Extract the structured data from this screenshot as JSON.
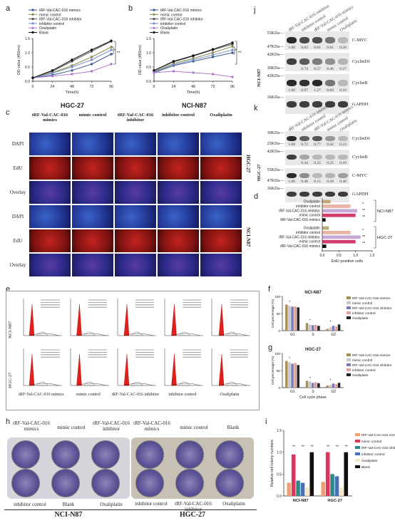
{
  "panels": {
    "a": {
      "label": "a",
      "ylabel": "OD value (450nm)",
      "xlabel": "Time(h)",
      "cell_line": "HGC-27"
    },
    "b": {
      "label": "b",
      "ylabel": "OD value (450nm)",
      "xlabel": "Time(h)",
      "cell_line": "NCI-N87"
    },
    "c": {
      "label": "c"
    },
    "d": {
      "label": "d",
      "xlabel": "EdU positive cells"
    },
    "e": {
      "label": "e"
    },
    "f": {
      "label": "f",
      "title": "NCI-N87"
    },
    "g": {
      "label": "g",
      "title": "HGC-27",
      "xlabel": "Cell cycle phase"
    },
    "h": {
      "label": "h"
    },
    "i": {
      "label": "i"
    },
    "j": {
      "label": "j",
      "cell_line": "NCI-N87"
    },
    "k": {
      "label": "k",
      "cell_line": "HGC-27"
    }
  },
  "legend_groups": [
    "tRF-Val-CAC-016 mimics",
    "mimic control",
    "tRF-Val-CAC-016 inhibitor",
    "inhibitor control",
    "Oxaliplatin",
    "Blank"
  ],
  "microscopy": {
    "columns": [
      "tRF-Val-CAC-016 mimics",
      "mimic control",
      "tRF-Val-CAC-016 inhibitor",
      "inhibitor control",
      "Oxaliplatin"
    ],
    "rows": [
      "DAPI",
      "EdU",
      "Overlay",
      "DAPI",
      "EdU",
      "Overlay"
    ],
    "side_labels": [
      "HGC-27",
      "NCI-N87"
    ]
  },
  "flow": {
    "columns": [
      "tRF-Val-CAC-016 mimics",
      "mimic control",
      "tRF-Val-CAC-016 inhibitor",
      "inhibitor control",
      "Oxaliplatin"
    ],
    "rows": [
      "NCI-N87",
      "HGC-27"
    ]
  },
  "blot_j": {
    "columns": [
      "tRF-Val-CAC-016 inhibitor",
      "inhibitor control",
      "tRF-Val-CAC-016 mimics",
      "mimic control",
      "Oxaliplatin"
    ],
    "rows": [
      {
        "kda": "55KDa",
        "kda2": "47KDa",
        "protein": "C-MYC",
        "values": [
          "1.00",
          "0.83",
          "0.81",
          "0.61",
          "0.20"
        ]
      },
      {
        "kda": "42KDa",
        "kda2": "30KDa",
        "protein": "CyclinD1",
        "values": [
          "",
          "0.74",
          "0.57",
          "0.46",
          "0.27"
        ]
      },
      {
        "kda": "42KDa",
        "kda2": "",
        "protein": "CyclinB",
        "values": [
          "1.00",
          "0.97",
          "1.27",
          "0.60",
          "0.10"
        ]
      },
      {
        "kda": "36KDa",
        "kda2": "",
        "protein": "GAPDH",
        "values": []
      }
    ]
  },
  "blot_k": {
    "columns": [
      "tRF-Val-CAC-016 inhibitor",
      "inhibitor control",
      "tRF-Val-CAC-016 mimics",
      "mimic control",
      "Oxaliplatin"
    ],
    "rows": [
      {
        "kda": "30KDa",
        "kda2": "25KDa",
        "protein": "CyclinD1",
        "values": [
          "1.00",
          "0.72",
          "0.77",
          "0.42",
          "0.23"
        ]
      },
      {
        "kda": "42KDa",
        "kda2": "",
        "protein": "CyclinB",
        "values": [
          "",
          "0.34",
          "0.25",
          "0.25",
          "0.10"
        ]
      },
      {
        "kda": "55KDa",
        "kda2": "47KDa",
        "protein": "C-MYC",
        "values": [
          "1.00",
          "0.48",
          "0.15",
          "0.28",
          "0.40"
        ]
      },
      {
        "kda": "36KDa",
        "kda2": "",
        "protein": "GAPDH",
        "values": []
      }
    ]
  },
  "plates": {
    "nci_top": [
      "tRF-Val-CAC-016 mimics",
      "mimic control",
      "tRF-Val-CAC-016 inhibitor"
    ],
    "nci_bottom": [
      "inhibitor control",
      "Blank",
      "Oxaliplatin"
    ],
    "hgc_top": [
      "tRF-Val-CAC-016 mimics",
      "mimic control",
      "Blank"
    ],
    "hgc_bottom": [
      "inhibitor control",
      "tRF-Val-CAC-016 inhibitor",
      "Oxaliplatin"
    ],
    "nci_caption": "NCI-N87",
    "hgc_caption": "HGC-27"
  },
  "chart_data": [
    {
      "id": "a",
      "type": "line",
      "xlabel": "Time(h)",
      "ylabel": "OD value (450nm)",
      "x": [
        0,
        24,
        48,
        72,
        96
      ],
      "ylim": [
        0,
        1.5
      ],
      "series": [
        {
          "name": "tRF-Val-CAC-016 mimics",
          "color": "#3d5a99",
          "values": [
            0.12,
            0.22,
            0.38,
            0.6,
            0.95
          ]
        },
        {
          "name": "mimic control",
          "color": "#8b8b4a",
          "values": [
            0.12,
            0.3,
            0.55,
            0.85,
            1.2
          ]
        },
        {
          "name": "tRF-Val-CAC-016 inhibitor",
          "color": "#555555",
          "values": [
            0.12,
            0.35,
            0.7,
            1.05,
            1.4
          ]
        },
        {
          "name": "inhibitor control",
          "color": "#7a8fc7",
          "values": [
            0.12,
            0.28,
            0.5,
            0.75,
            1.1
          ]
        },
        {
          "name": "Oxaliplatin",
          "color": "#b07acc",
          "values": [
            0.12,
            0.18,
            0.25,
            0.35,
            0.6
          ]
        },
        {
          "name": "Blank",
          "color": "#111111",
          "values": [
            0.12,
            0.38,
            0.75,
            1.1,
            1.42
          ]
        }
      ]
    },
    {
      "id": "b",
      "type": "line",
      "xlabel": "Time(h)",
      "ylabel": "OD value (450nm)",
      "x": [
        0,
        24,
        48,
        72,
        96
      ],
      "ylim": [
        0,
        1.5
      ],
      "series": [
        {
          "name": "tRF-Val-CAC-016 mimics",
          "color": "#3d5a99",
          "values": [
            0.3,
            0.55,
            0.7,
            0.85,
            1.0
          ]
        },
        {
          "name": "mimic control",
          "color": "#8b8b4a",
          "values": [
            0.35,
            0.62,
            0.8,
            1.0,
            1.22
          ]
        },
        {
          "name": "tRF-Val-CAC-016 inhibitor",
          "color": "#555555",
          "values": [
            0.38,
            0.68,
            0.88,
            1.1,
            1.3
          ]
        },
        {
          "name": "inhibitor control",
          "color": "#7a8fc7",
          "values": [
            0.33,
            0.58,
            0.75,
            0.92,
            1.1
          ]
        },
        {
          "name": "Oxaliplatin",
          "color": "#b07acc",
          "values": [
            0.3,
            0.35,
            0.3,
            0.25,
            0.15
          ]
        },
        {
          "name": "Blank",
          "color": "#111111",
          "values": [
            0.38,
            0.7,
            0.9,
            1.12,
            1.35
          ]
        }
      ]
    },
    {
      "id": "d",
      "type": "bar",
      "xlabel": "EdU positive cells",
      "xlim": [
        0,
        1.5
      ],
      "groups": [
        {
          "name": "NCI-N87",
          "categories": [
            "Oxaliplatin",
            "inhibitor control",
            "tRF-Val-CAC-016 inhibitor",
            "mimic control",
            "tRF-Val-CAC-016 mimics"
          ],
          "values": [
            0.25,
            0.85,
            1.05,
            1.0,
            0.1
          ]
        },
        {
          "name": "HGC-27",
          "categories": [
            "Oxaliplatin",
            "inhibitor control",
            "tRF-Val-CAC-016 inhibitor",
            "mimic control",
            "tRF-Val-CAC-016 mimics"
          ],
          "values": [
            0.2,
            0.85,
            1.15,
            1.0,
            0.12
          ]
        }
      ],
      "colors": [
        "#bba978",
        "#e9b3a5",
        "#c6a9d6",
        "#d33d6d",
        "#111111"
      ]
    },
    {
      "id": "f",
      "type": "bar",
      "title": "NCI-N87",
      "ylabel": "Cell percentage (%)",
      "categories": [
        "G1",
        "S",
        "G2"
      ],
      "ylim": [
        0,
        100
      ],
      "series": [
        {
          "name": "tRF-Val-CAC-016 mimics",
          "color": "#a88f5a",
          "values": [
            76,
            22,
            5
          ]
        },
        {
          "name": "mimic control",
          "color": "#c7c7c7",
          "values": [
            72,
            18,
            10
          ]
        },
        {
          "name": "tRF-Val-CAC-016 inhibitor",
          "color": "#7a7ab5",
          "values": [
            70,
            16,
            14
          ]
        },
        {
          "name": "inhibitor control",
          "color": "#e0a0a0",
          "values": [
            71,
            17,
            12
          ]
        },
        {
          "name": "Oxaliplatin",
          "color": "#222222",
          "values": [
            68,
            14,
            18
          ]
        }
      ]
    },
    {
      "id": "g",
      "type": "bar",
      "title": "HGC-27",
      "xlabel": "Cell cycle phase",
      "ylabel": "Cell percentage (%)",
      "categories": [
        "G1",
        "S",
        "G2"
      ],
      "ylim": [
        0,
        100
      ],
      "series": [
        {
          "name": "tRF-Val-CAC-016 mimics",
          "color": "#a88f5a",
          "values": [
            78,
            20,
            6
          ]
        },
        {
          "name": "mimic control",
          "color": "#c7c7c7",
          "values": [
            74,
            18,
            8
          ]
        },
        {
          "name": "tRF-Val-CAC-016 inhibitor",
          "color": "#7a7ab5",
          "values": [
            70,
            14,
            12
          ]
        },
        {
          "name": "inhibitor control",
          "color": "#e0a0a0",
          "values": [
            72,
            16,
            10
          ]
        },
        {
          "name": "Oxaliplatin",
          "color": "#222222",
          "values": [
            66,
            13,
            14
          ]
        }
      ]
    },
    {
      "id": "i",
      "type": "bar",
      "ylabel": "Relative cell colony numbers",
      "categories": [
        "NCI-N87",
        "HGC-27"
      ],
      "ylim": [
        0,
        1.5
      ],
      "series": [
        {
          "name": "tRF-Val-CAC-016 mimics",
          "color": "#f0a070",
          "values": [
            0.3,
            0.32
          ]
        },
        {
          "name": "mimic control",
          "color": "#e2335a",
          "values": [
            0.95,
            1.0
          ]
        },
        {
          "name": "tRF-Val-CAC-016 inhibitor",
          "color": "#2f8a8a",
          "values": [
            0.35,
            0.5
          ]
        },
        {
          "name": "inhibitor control",
          "color": "#4a6fb5",
          "values": [
            0.3,
            0.45
          ]
        },
        {
          "name": "Oxaliplatin",
          "color": "#f3e6c9",
          "values": [
            0.2,
            0.2
          ]
        },
        {
          "name": "Blank",
          "color": "#111111",
          "values": [
            1.0,
            1.0
          ]
        }
      ]
    }
  ]
}
